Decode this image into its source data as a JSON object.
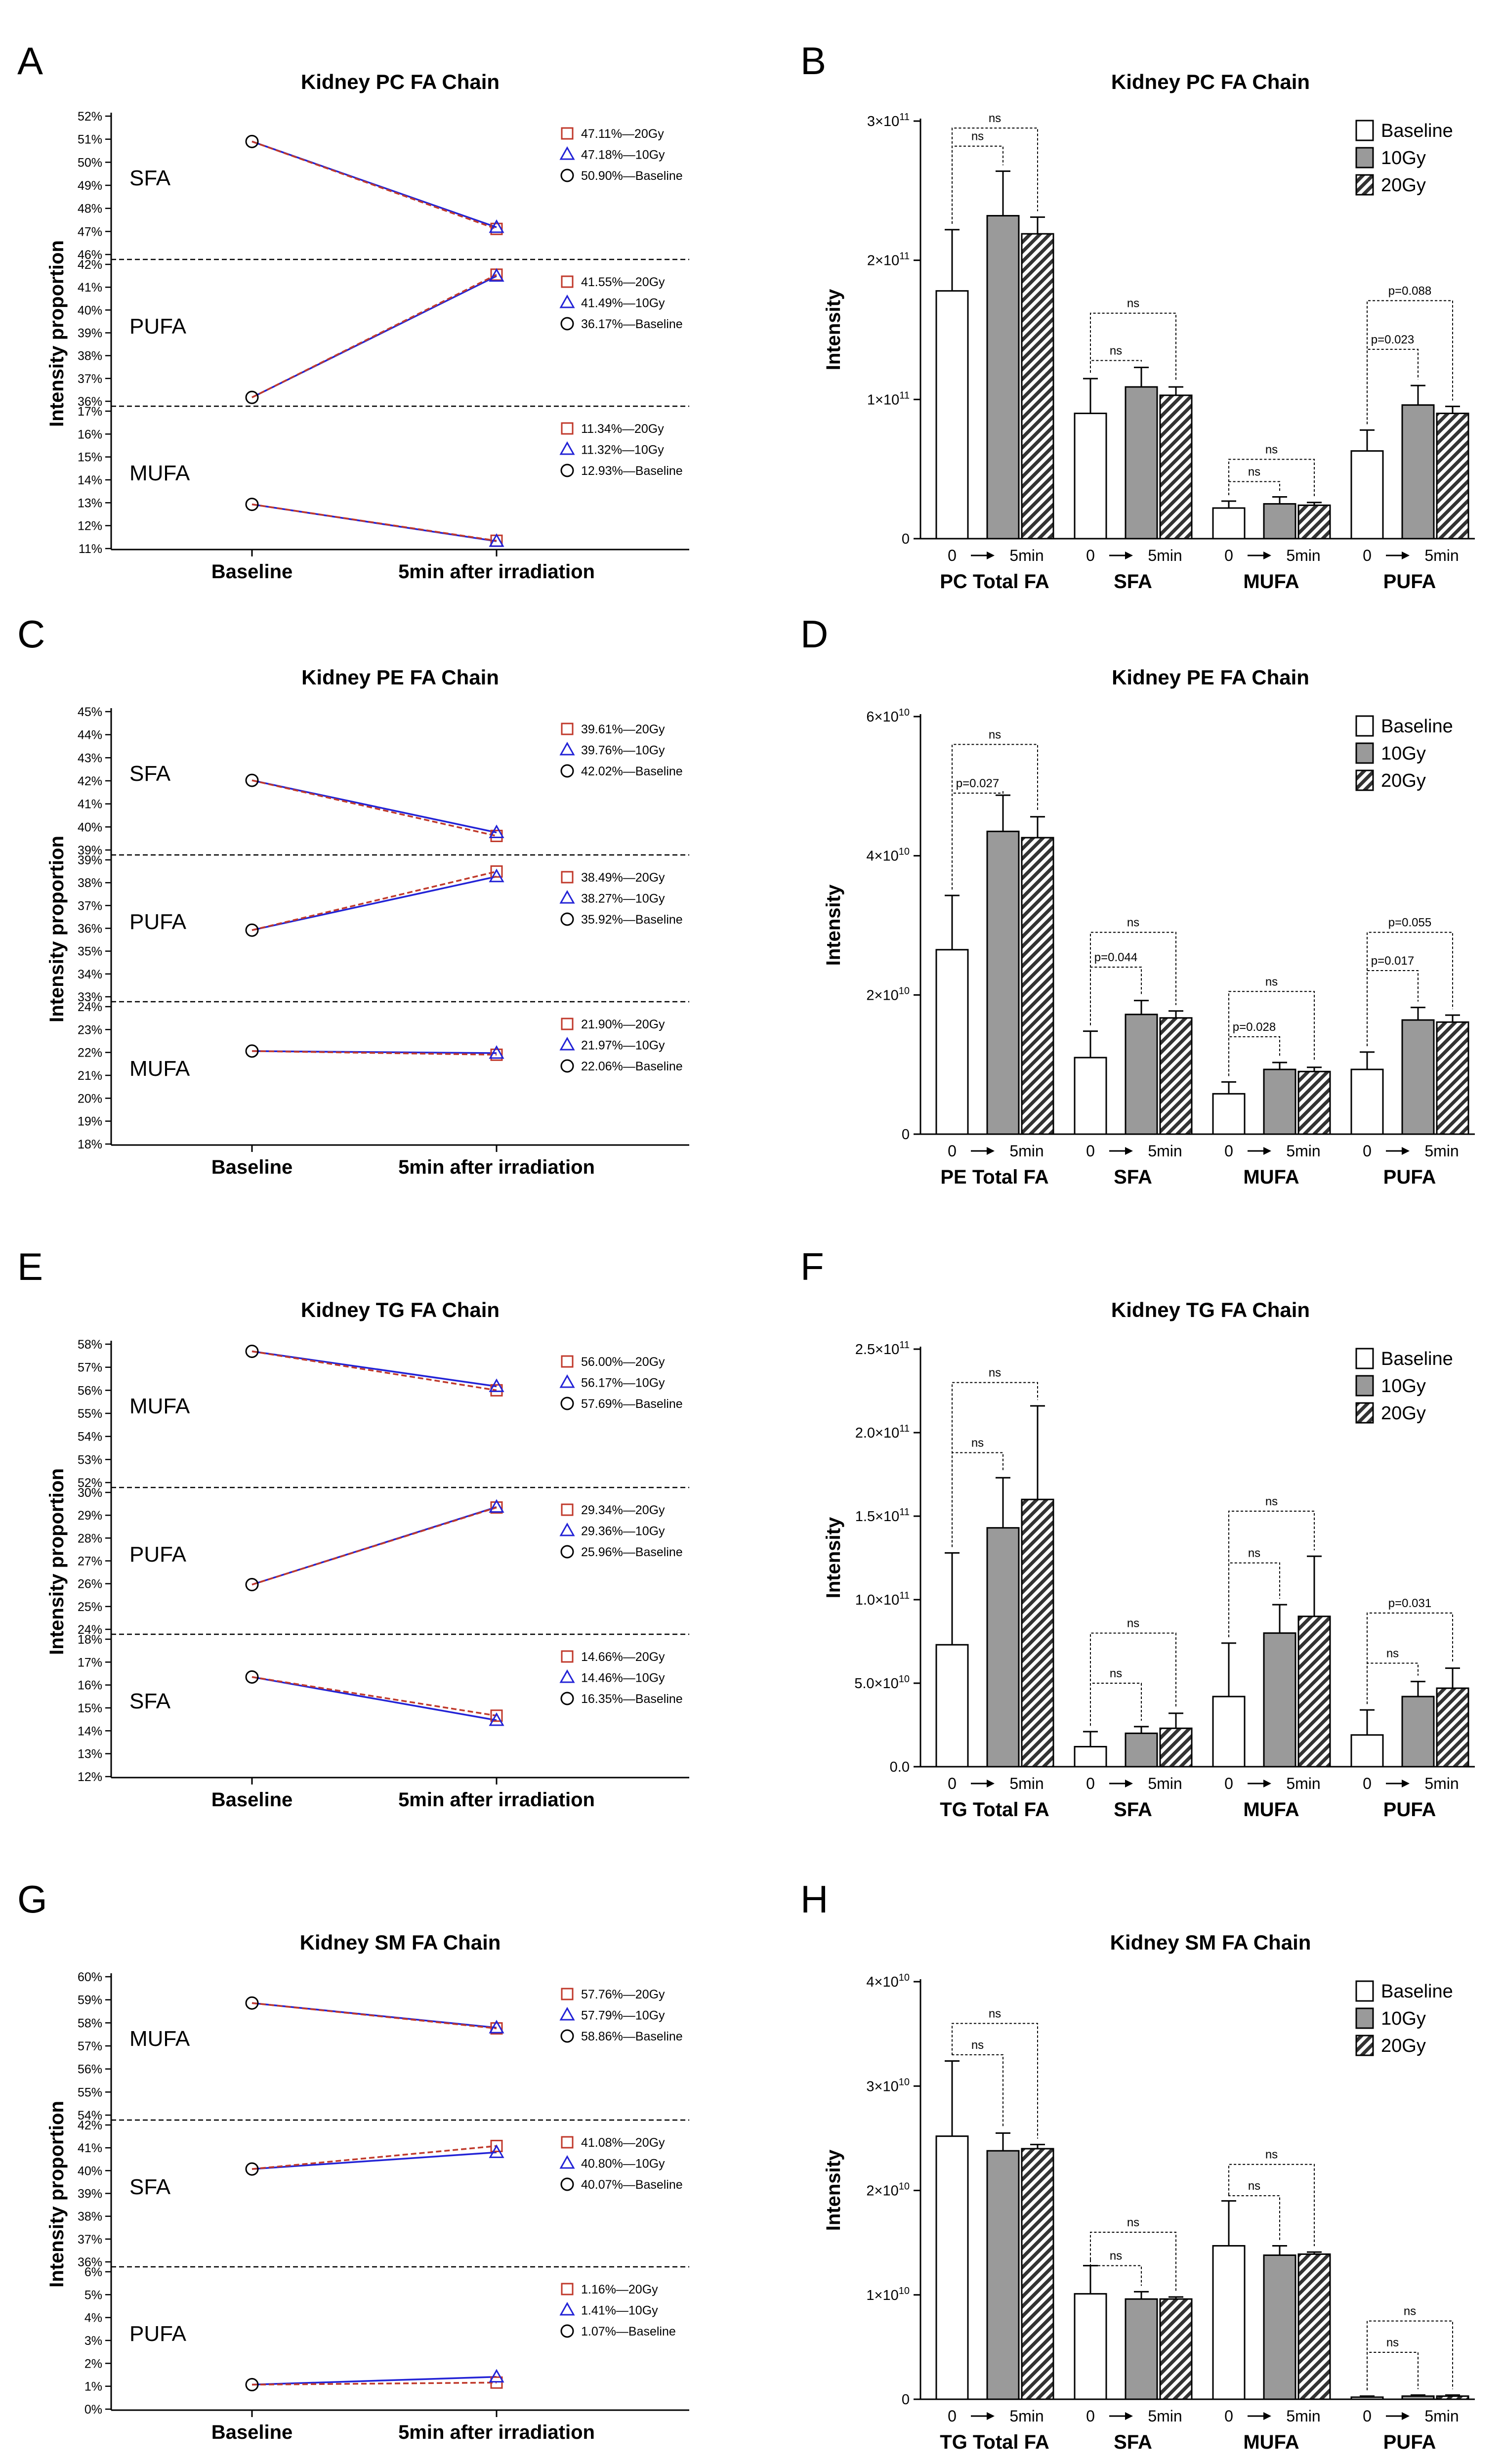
{
  "panel_labels": [
    "A",
    "B",
    "C",
    "D",
    "E",
    "F",
    "G",
    "H"
  ],
  "common": {
    "line_ylabel": "Intensity proportion",
    "line_xticks": [
      "Baseline",
      "5min after irradiation"
    ],
    "bar_ylabel": "Intensity",
    "bar_legend": [
      "Baseline",
      "10Gy",
      "20Gy"
    ],
    "bar_sub_0": "0",
    "bar_sub_5": "5min",
    "ns": "ns",
    "colors": {
      "line_20gy": "#c0392b",
      "line_10gy": "#2323d6",
      "line_base": "#000000"
    }
  },
  "chart_data": [
    {
      "type": "line",
      "panel": "A",
      "title": "Kidney PC FA Chain",
      "sections": [
        {
          "label": "SFA",
          "yticks": [
            "52%",
            "51%",
            "50%",
            "49%",
            "48%",
            "47%",
            "46%"
          ],
          "ylim": [
            46,
            52
          ],
          "legend": [
            "47.11%—20Gy",
            "47.18%—10Gy",
            "50.90%—Baseline"
          ],
          "series": {
            "20Gy": [
              50.9,
              47.11
            ],
            "10Gy": [
              50.9,
              47.18
            ],
            "Baseline": [
              50.9
            ]
          }
        },
        {
          "label": "PUFA",
          "yticks": [
            "42%",
            "41%",
            "40%",
            "39%",
            "38%",
            "37%",
            "36%"
          ],
          "ylim": [
            36,
            42
          ],
          "legend": [
            "41.55%—20Gy",
            "41.49%—10Gy",
            "36.17%—Baseline"
          ],
          "series": {
            "20Gy": [
              36.17,
              41.55
            ],
            "10Gy": [
              36.17,
              41.49
            ],
            "Baseline": [
              36.17
            ]
          }
        },
        {
          "label": "MUFA",
          "yticks": [
            "17%",
            "16%",
            "15%",
            "14%",
            "13%",
            "12%",
            "11%"
          ],
          "ylim": [
            11,
            17
          ],
          "legend": [
            "11.34%—20Gy",
            "11.32%—10Gy",
            "12.93%—Baseline"
          ],
          "series": {
            "20Gy": [
              12.93,
              11.34
            ],
            "10Gy": [
              12.93,
              11.32
            ],
            "Baseline": [
              12.93
            ]
          }
        }
      ]
    },
    {
      "type": "bar",
      "panel": "B",
      "title": "Kidney PC FA Chain",
      "unit_exp": 11,
      "ytick_mantissas": [
        "0",
        "1×10",
        "2×10",
        "3×10"
      ],
      "ytick_values": [
        0,
        1,
        2,
        3
      ],
      "ylim": [
        0,
        3
      ],
      "categories": [
        "PC Total FA",
        "SFA",
        "MUFA",
        "PUFA"
      ],
      "series": [
        {
          "name": "Baseline",
          "values": [
            1.78,
            0.9,
            0.22,
            0.63
          ],
          "errors": [
            0.44,
            0.25,
            0.05,
            0.15
          ]
        },
        {
          "name": "10Gy",
          "values": [
            2.32,
            1.09,
            0.25,
            0.96
          ],
          "errors": [
            0.32,
            0.14,
            0.05,
            0.14
          ]
        },
        {
          "name": "20Gy",
          "values": [
            2.19,
            1.03,
            0.24,
            0.9
          ],
          "errors": [
            0.12,
            0.06,
            0.02,
            0.05
          ]
        }
      ],
      "brackets": [
        {
          "group": 0,
          "to": 1,
          "label": "ns",
          "level": 2.82
        },
        {
          "group": 0,
          "to": 2,
          "label": "ns",
          "level": 2.95
        },
        {
          "group": 1,
          "to": 1,
          "label": "ns",
          "level": 1.28
        },
        {
          "group": 1,
          "to": 2,
          "label": "ns",
          "level": 1.62
        },
        {
          "group": 2,
          "to": 1,
          "label": "ns",
          "level": 0.41
        },
        {
          "group": 2,
          "to": 2,
          "label": "ns",
          "level": 0.57
        },
        {
          "group": 3,
          "to": 1,
          "label": "p=0.023",
          "level": 1.36
        },
        {
          "group": 3,
          "to": 2,
          "label": "p=0.088",
          "level": 1.71
        }
      ]
    },
    {
      "type": "line",
      "panel": "C",
      "title": "Kidney PE FA Chain",
      "sections": [
        {
          "label": "SFA",
          "yticks": [
            "45%",
            "44%",
            "43%",
            "42%",
            "41%",
            "40%",
            "39%"
          ],
          "ylim": [
            39,
            45
          ],
          "legend": [
            "39.61%—20Gy",
            "39.76%—10Gy",
            "42.02%—Baseline"
          ],
          "series": {
            "20Gy": [
              42.02,
              39.61
            ],
            "10Gy": [
              42.02,
              39.76
            ],
            "Baseline": [
              42.02
            ]
          }
        },
        {
          "label": "PUFA",
          "yticks": [
            "39%",
            "38%",
            "37%",
            "36%",
            "35%",
            "34%",
            "33%"
          ],
          "ylim": [
            33,
            39
          ],
          "legend": [
            "38.49%—20Gy",
            "38.27%—10Gy",
            "35.92%—Baseline"
          ],
          "series": {
            "20Gy": [
              35.92,
              38.49
            ],
            "10Gy": [
              35.92,
              38.27
            ],
            "Baseline": [
              35.92
            ]
          }
        },
        {
          "label": "MUFA",
          "yticks": [
            "24%",
            "23%",
            "22%",
            "21%",
            "20%",
            "19%",
            "18%"
          ],
          "ylim": [
            18,
            24
          ],
          "legend": [
            "21.90%—20Gy",
            "21.97%—10Gy",
            "22.06%—Baseline"
          ],
          "series": {
            "20Gy": [
              22.06,
              21.9
            ],
            "10Gy": [
              22.06,
              21.97
            ],
            "Baseline": [
              22.06
            ]
          }
        }
      ]
    },
    {
      "type": "bar",
      "panel": "D",
      "title": "Kidney PE FA Chain",
      "unit_exp": 10,
      "ytick_mantissas": [
        "0",
        "2×10",
        "4×10",
        "6×10"
      ],
      "ytick_values": [
        0,
        2,
        4,
        6
      ],
      "ylim": [
        0,
        6
      ],
      "categories": [
        "PE Total FA",
        "SFA",
        "MUFA",
        "PUFA"
      ],
      "series": [
        {
          "name": "Baseline",
          "values": [
            2.65,
            1.1,
            0.58,
            0.93
          ],
          "errors": [
            0.78,
            0.38,
            0.17,
            0.25
          ]
        },
        {
          "name": "10Gy",
          "values": [
            4.35,
            1.72,
            0.93,
            1.64
          ],
          "errors": [
            0.52,
            0.2,
            0.1,
            0.18
          ]
        },
        {
          "name": "20Gy",
          "values": [
            4.26,
            1.67,
            0.9,
            1.61
          ],
          "errors": [
            0.3,
            0.1,
            0.06,
            0.1
          ]
        }
      ],
      "brackets": [
        {
          "group": 0,
          "to": 1,
          "label": "p=0.027",
          "level": 4.9
        },
        {
          "group": 0,
          "to": 2,
          "label": "ns",
          "level": 5.6
        },
        {
          "group": 1,
          "to": 1,
          "label": "p=0.044",
          "level": 2.4
        },
        {
          "group": 1,
          "to": 2,
          "label": "ns",
          "level": 2.9
        },
        {
          "group": 2,
          "to": 1,
          "label": "p=0.028",
          "level": 1.4
        },
        {
          "group": 2,
          "to": 2,
          "label": "ns",
          "level": 2.05
        },
        {
          "group": 3,
          "to": 1,
          "label": "p=0.017",
          "level": 2.35
        },
        {
          "group": 3,
          "to": 2,
          "label": "p=0.055",
          "level": 2.9
        }
      ]
    },
    {
      "type": "line",
      "panel": "E",
      "title": "Kidney TG FA Chain",
      "sections": [
        {
          "label": "MUFA",
          "yticks": [
            "58%",
            "57%",
            "56%",
            "55%",
            "54%",
            "53%",
            "52%"
          ],
          "ylim": [
            52,
            58
          ],
          "legend": [
            "56.00%—20Gy",
            "56.17%—10Gy",
            "57.69%—Baseline"
          ],
          "series": {
            "20Gy": [
              57.69,
              56.0
            ],
            "10Gy": [
              57.69,
              56.17
            ],
            "Baseline": [
              57.69
            ]
          }
        },
        {
          "label": "PUFA",
          "yticks": [
            "30%",
            "29%",
            "28%",
            "27%",
            "26%",
            "25%",
            "24%"
          ],
          "ylim": [
            24,
            30
          ],
          "legend": [
            "29.34%—20Gy",
            "29.36%—10Gy",
            "25.96%—Baseline"
          ],
          "series": {
            "20Gy": [
              25.96,
              29.34
            ],
            "10Gy": [
              25.96,
              29.36
            ],
            "Baseline": [
              25.96
            ]
          }
        },
        {
          "label": "SFA",
          "yticks": [
            "18%",
            "17%",
            "16%",
            "15%",
            "14%",
            "13%",
            "12%"
          ],
          "ylim": [
            12,
            18
          ],
          "legend": [
            "14.66%—20Gy",
            "14.46%—10Gy",
            "16.35%—Baseline"
          ],
          "series": {
            "20Gy": [
              16.35,
              14.66
            ],
            "10Gy": [
              16.35,
              14.46
            ],
            "Baseline": [
              16.35
            ]
          }
        }
      ]
    },
    {
      "type": "bar",
      "panel": "F",
      "title": "Kidney TG FA Chain",
      "unit_exp": 10,
      "ytick_labels": [
        "0.0",
        "5.0×10",
        "1.0×10",
        "1.5×10",
        "2.0×10",
        "2.5×10"
      ],
      "ytick_exps": [
        "",
        "10",
        "11",
        "11",
        "11",
        "11"
      ],
      "ytick_values": [
        0,
        5,
        10,
        15,
        20,
        25
      ],
      "ylim": [
        0,
        25
      ],
      "categories": [
        "TG Total FA",
        "SFA",
        "MUFA",
        "PUFA"
      ],
      "series": [
        {
          "name": "Baseline",
          "values": [
            7.3,
            1.2,
            4.2,
            1.9
          ],
          "errors": [
            5.5,
            0.9,
            3.2,
            1.5
          ]
        },
        {
          "name": "10Gy",
          "values": [
            14.3,
            2.0,
            8.0,
            4.2
          ],
          "errors": [
            3.0,
            0.4,
            1.7,
            0.9
          ]
        },
        {
          "name": "20Gy",
          "values": [
            16.0,
            2.3,
            9.0,
            4.7
          ],
          "errors": [
            5.6,
            0.9,
            3.6,
            1.2
          ]
        }
      ],
      "brackets": [
        {
          "group": 0,
          "to": 1,
          "label": "ns",
          "level": 18.8
        },
        {
          "group": 0,
          "to": 2,
          "label": "ns",
          "level": 23.0
        },
        {
          "group": 1,
          "to": 1,
          "label": "ns",
          "level": 5.0
        },
        {
          "group": 1,
          "to": 2,
          "label": "ns",
          "level": 8.0
        },
        {
          "group": 2,
          "to": 1,
          "label": "ns",
          "level": 12.2
        },
        {
          "group": 2,
          "to": 2,
          "label": "ns",
          "level": 15.3
        },
        {
          "group": 3,
          "to": 1,
          "label": "ns",
          "level": 6.2
        },
        {
          "group": 3,
          "to": 2,
          "label": "p=0.031",
          "level": 9.2
        }
      ]
    },
    {
      "type": "line",
      "panel": "G",
      "title": "Kidney SM FA Chain",
      "sections": [
        {
          "label": "MUFA",
          "yticks": [
            "60%",
            "59%",
            "58%",
            "57%",
            "56%",
            "55%",
            "54%"
          ],
          "ylim": [
            54,
            60
          ],
          "legend": [
            "57.76%—20Gy",
            "57.79%—10Gy",
            "58.86%—Baseline"
          ],
          "series": {
            "20Gy": [
              58.86,
              57.76
            ],
            "10Gy": [
              58.86,
              57.79
            ],
            "Baseline": [
              58.86
            ]
          }
        },
        {
          "label": "SFA",
          "yticks": [
            "42%",
            "41%",
            "40%",
            "39%",
            "38%",
            "37%",
            "36%"
          ],
          "ylim": [
            36,
            42
          ],
          "legend": [
            "41.08%—20Gy",
            "40.80%—10Gy",
            "40.07%—Baseline"
          ],
          "series": {
            "20Gy": [
              40.07,
              41.08
            ],
            "10Gy": [
              40.07,
              40.8
            ],
            "Baseline": [
              40.07
            ]
          }
        },
        {
          "label": "PUFA",
          "yticks": [
            "6%",
            "5%",
            "4%",
            "3%",
            "2%",
            "1%",
            "0%"
          ],
          "ylim": [
            0,
            6
          ],
          "legend": [
            "1.16%—20Gy",
            "1.41%—10Gy",
            "1.07%—Baseline"
          ],
          "series": {
            "20Gy": [
              1.07,
              1.16
            ],
            "10Gy": [
              1.07,
              1.41
            ],
            "Baseline": [
              1.07
            ]
          }
        }
      ]
    },
    {
      "type": "bar",
      "panel": "H",
      "title": "Kidney SM FA Chain",
      "unit_exp": 10,
      "ytick_mantissas": [
        "0",
        "1×10",
        "2×10",
        "3×10",
        "4×10"
      ],
      "ytick_values": [
        0,
        1,
        2,
        3,
        4
      ],
      "ylim": [
        0,
        4
      ],
      "categories": [
        "TG Total FA",
        "SFA",
        "MUFA",
        "PUFA"
      ],
      "series": [
        {
          "name": "Baseline",
          "values": [
            2.52,
            1.01,
            1.47,
            0.02
          ],
          "errors": [
            0.72,
            0.27,
            0.43,
            0.01
          ]
        },
        {
          "name": "10Gy",
          "values": [
            2.38,
            0.96,
            1.38,
            0.03
          ],
          "errors": [
            0.17,
            0.07,
            0.09,
            0.01
          ]
        },
        {
          "name": "20Gy",
          "values": [
            2.4,
            0.96,
            1.39,
            0.03
          ],
          "errors": [
            0.04,
            0.02,
            0.02,
            0.01
          ]
        }
      ],
      "brackets": [
        {
          "group": 0,
          "to": 1,
          "label": "ns",
          "level": 3.3
        },
        {
          "group": 0,
          "to": 2,
          "label": "ns",
          "level": 3.6
        },
        {
          "group": 1,
          "to": 1,
          "label": "ns",
          "level": 1.28
        },
        {
          "group": 1,
          "to": 2,
          "label": "ns",
          "level": 1.6
        },
        {
          "group": 2,
          "to": 1,
          "label": "ns",
          "level": 1.95
        },
        {
          "group": 2,
          "to": 2,
          "label": "ns",
          "level": 2.25
        },
        {
          "group": 3,
          "to": 1,
          "label": "ns",
          "level": 0.45
        },
        {
          "group": 3,
          "to": 2,
          "label": "ns",
          "level": 0.75
        }
      ]
    }
  ]
}
